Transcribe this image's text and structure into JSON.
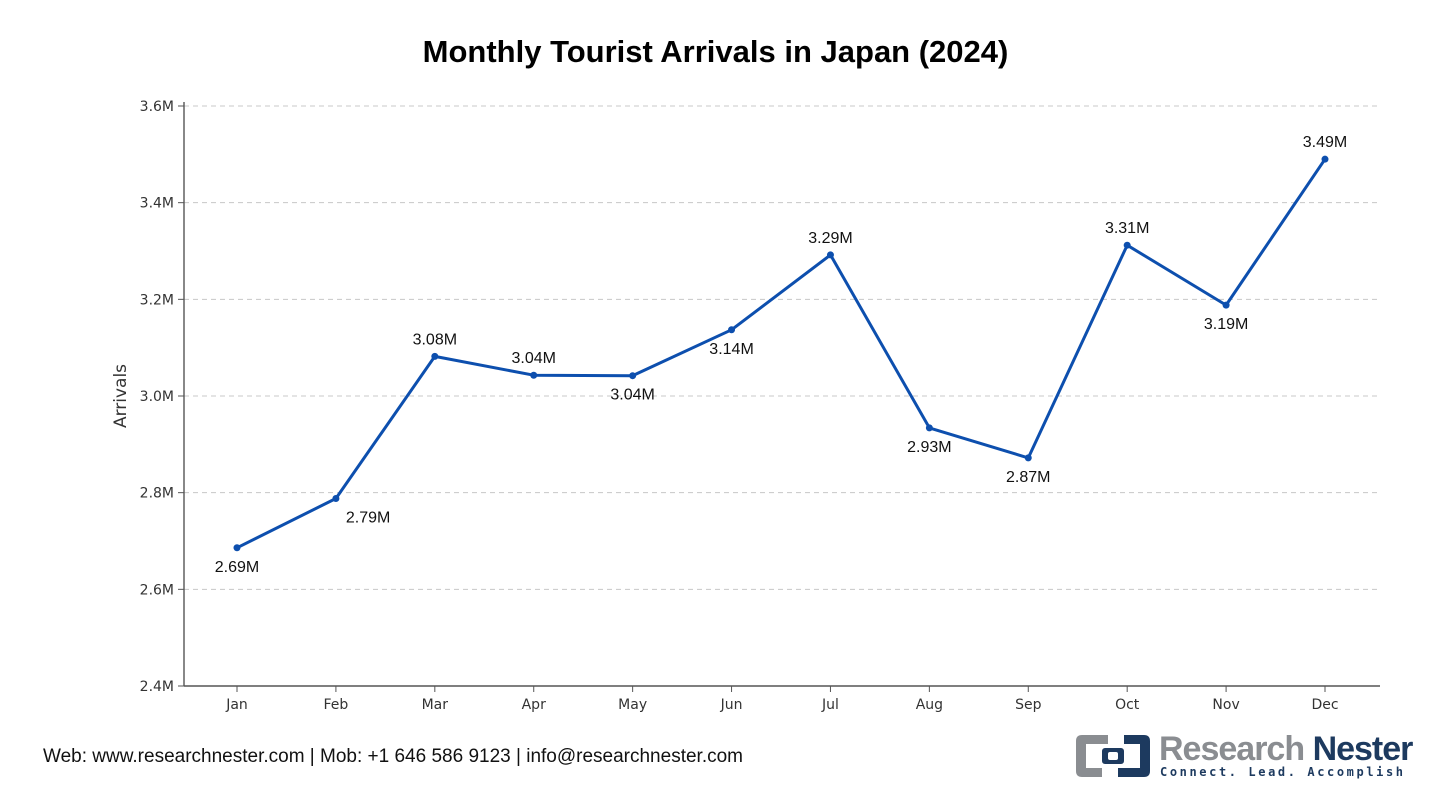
{
  "chart_data": {
    "type": "line",
    "title": "Monthly Tourist Arrivals in Japan (2024)",
    "xlabel": "",
    "ylabel": "Arrivals",
    "categories": [
      "Jan",
      "Feb",
      "Mar",
      "Apr",
      "May",
      "Jun",
      "Jul",
      "Aug",
      "Sep",
      "Oct",
      "Nov",
      "Dec"
    ],
    "series": [
      {
        "values": [
          2.686,
          2.788,
          3.082,
          3.043,
          3.042,
          3.137,
          3.292,
          2.934,
          2.872,
          3.312,
          3.188,
          3.49
        ]
      }
    ],
    "data_labels": [
      "2.69M",
      "2.79M",
      "3.08M",
      "3.04M",
      "3.04M",
      "3.14M",
      "3.29M",
      "2.93M",
      "2.87M",
      "3.31M",
      "3.19M",
      "3.49M"
    ],
    "label_positions": [
      "below",
      "below",
      "above",
      "above",
      "below",
      "below",
      "above",
      "below",
      "below",
      "above",
      "below",
      "above"
    ],
    "ylim": [
      2.4,
      3.6
    ],
    "y_ticks": [
      {
        "value": 2.4,
        "label": "2.4M"
      },
      {
        "value": 2.6,
        "label": "2.6M"
      },
      {
        "value": 2.8,
        "label": "2.8M"
      },
      {
        "value": 3.0,
        "label": "3.0M"
      },
      {
        "value": 3.2,
        "label": "3.2M"
      },
      {
        "value": 3.4,
        "label": "3.4M"
      },
      {
        "value": 3.6,
        "label": "3.6M"
      }
    ],
    "grid": true,
    "line_color": "#0d4fae"
  },
  "footer": {
    "web": "Web: www.researchnester.com",
    "sep1": " | ",
    "mob": "Mob: +1 646 586 9123",
    "sep2": " | ",
    "email": "info@researchnester.com"
  },
  "logo": {
    "word1": "Research",
    "word2": "Nester",
    "tagline": "Connect. Lead. Accomplish"
  },
  "colors": {
    "grid": "#c8c8c8",
    "axis": "#555555",
    "logo_gray": "#8a8d91",
    "logo_navy": "#1d3a5f"
  }
}
